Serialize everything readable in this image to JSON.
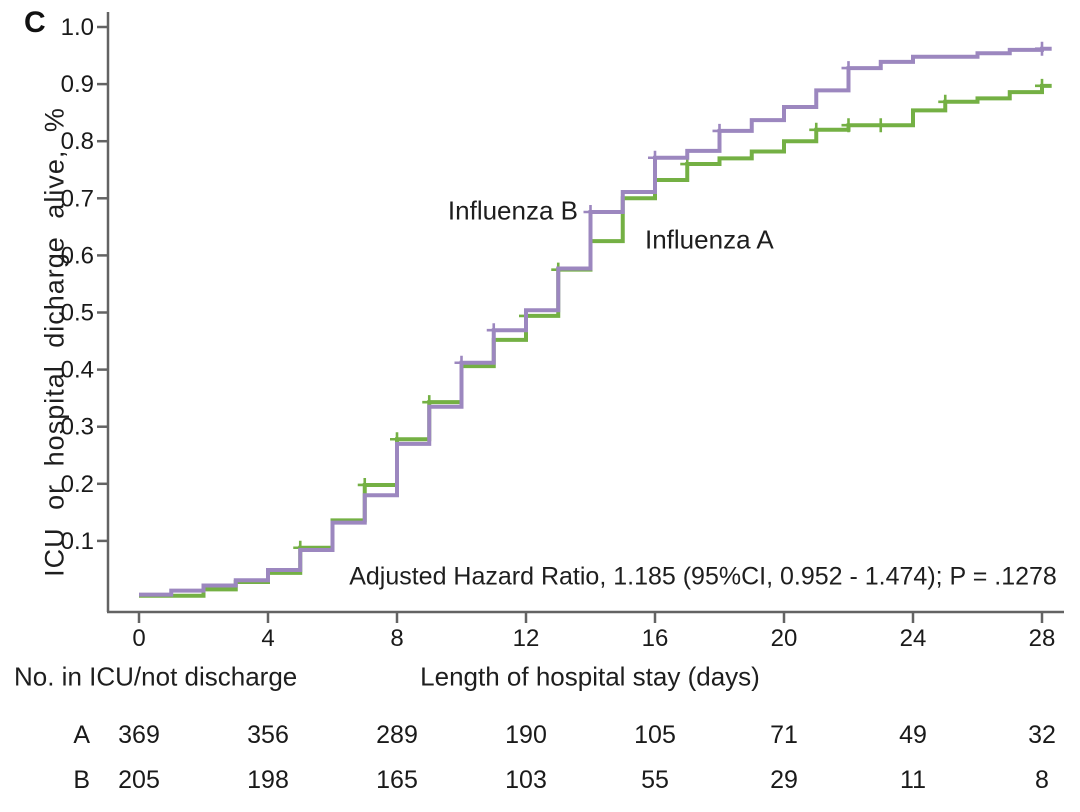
{
  "panel_label": "C",
  "y_axis": {
    "label": "ICU or hospital dicharge alive, %",
    "tick_labels": [
      "1.0",
      "0.9",
      "0.8",
      "0.7",
      "0.6",
      "0.5",
      "0.4",
      "0.3",
      "0.2",
      "0.1"
    ]
  },
  "x_axis": {
    "label": "Length of hospital stay (days)",
    "tick_labels": [
      "0",
      "4",
      "8",
      "12",
      "16",
      "20",
      "24",
      "28"
    ]
  },
  "annotation": "Adjusted Hazard Ratio, 1.185 (95%CI, 0.952 - 1.474); P = .1278",
  "curve_labels": {
    "influenza_b": "Influenza B",
    "influenza_a": "Influenza A"
  },
  "risk_table": {
    "header": "No. in ICU/not discharge",
    "rows": [
      {
        "label": "A",
        "values": [
          "369",
          "356",
          "289",
          "190",
          "105",
          "71",
          "49",
          "32"
        ]
      },
      {
        "label": "B",
        "values": [
          "205",
          "198",
          "165",
          "103",
          "55",
          "29",
          "11",
          "8"
        ]
      }
    ]
  },
  "colors": {
    "influenza_a": "#74b044",
    "influenza_b": "#9c87bf",
    "axis": "#636363",
    "text": "#1e1e1e"
  },
  "chart_data": {
    "type": "line",
    "subtype": "kaplan-meier-step",
    "title": "",
    "xlabel": "Length of hospital stay (days)",
    "ylabel": "ICU or hospital dicharge alive, %",
    "xlim": [
      0,
      28
    ],
    "ylim": [
      0,
      1.0
    ],
    "x_ticks": [
      0,
      4,
      8,
      12,
      16,
      20,
      24,
      28
    ],
    "y_ticks": [
      0.1,
      0.2,
      0.3,
      0.4,
      0.5,
      0.6,
      0.7,
      0.8,
      0.9,
      1.0
    ],
    "grid": false,
    "legend_position": "inline-labels",
    "series": [
      {
        "name": "Influenza A",
        "color": "#74b044",
        "step_points": [
          [
            0,
            0.004
          ],
          [
            2,
            0.015
          ],
          [
            3,
            0.028
          ],
          [
            4,
            0.044
          ],
          [
            5,
            0.088
          ],
          [
            6,
            0.136
          ],
          [
            7,
            0.198
          ],
          [
            8,
            0.278
          ],
          [
            9,
            0.343
          ],
          [
            10,
            0.406
          ],
          [
            11,
            0.452
          ],
          [
            12,
            0.494
          ],
          [
            13,
            0.575
          ],
          [
            14,
            0.625
          ],
          [
            15,
            0.7
          ],
          [
            16,
            0.732
          ],
          [
            17,
            0.76
          ],
          [
            18,
            0.77
          ],
          [
            19,
            0.782
          ],
          [
            20,
            0.8
          ],
          [
            21,
            0.82
          ],
          [
            22,
            0.828
          ],
          [
            24,
            0.854
          ],
          [
            25,
            0.869
          ],
          [
            26,
            0.875
          ],
          [
            27,
            0.886
          ],
          [
            28,
            0.897
          ]
        ],
        "censor_marks": [
          [
            5,
            0.088
          ],
          [
            7,
            0.198
          ],
          [
            8,
            0.278
          ],
          [
            9,
            0.343
          ],
          [
            12,
            0.494
          ],
          [
            13,
            0.575
          ],
          [
            17,
            0.76
          ],
          [
            21,
            0.82
          ],
          [
            22,
            0.828
          ],
          [
            23,
            0.828
          ],
          [
            25,
            0.869
          ],
          [
            28,
            0.897
          ]
        ]
      },
      {
        "name": "Influenza B",
        "color": "#9c87bf",
        "step_points": [
          [
            0,
            0.006
          ],
          [
            1,
            0.013
          ],
          [
            2,
            0.022
          ],
          [
            3,
            0.031
          ],
          [
            4,
            0.049
          ],
          [
            5,
            0.084
          ],
          [
            6,
            0.132
          ],
          [
            7,
            0.18
          ],
          [
            8,
            0.27
          ],
          [
            9,
            0.335
          ],
          [
            10,
            0.412
          ],
          [
            11,
            0.469
          ],
          [
            12,
            0.504
          ],
          [
            13,
            0.577
          ],
          [
            14,
            0.676
          ],
          [
            15,
            0.711
          ],
          [
            16,
            0.771
          ],
          [
            17,
            0.783
          ],
          [
            18,
            0.818
          ],
          [
            19,
            0.837
          ],
          [
            20,
            0.86
          ],
          [
            21,
            0.889
          ],
          [
            22,
            0.928
          ],
          [
            23,
            0.939
          ],
          [
            24,
            0.948
          ],
          [
            26,
            0.954
          ],
          [
            27,
            0.96
          ],
          [
            28,
            0.962
          ]
        ],
        "censor_marks": [
          [
            10,
            0.412
          ],
          [
            11,
            0.469
          ],
          [
            14,
            0.676
          ],
          [
            16,
            0.771
          ],
          [
            18,
            0.818
          ],
          [
            22,
            0.928
          ],
          [
            28,
            0.962
          ]
        ]
      }
    ]
  }
}
